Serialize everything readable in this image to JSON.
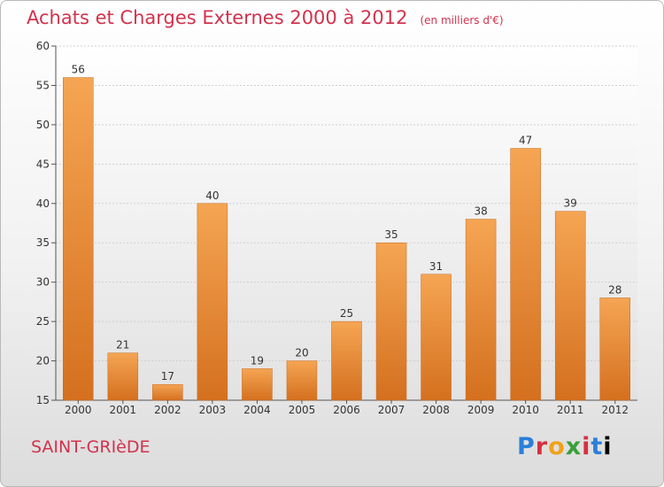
{
  "title": "Achats et Charges Externes 2000 à 2012",
  "subtitle": "(en milliers d'€)",
  "town": "SAINT-GRIèDE",
  "logo": [
    "P",
    "r",
    "o",
    "x",
    "i",
    "t",
    "i"
  ],
  "colors": {
    "bar_top": "#f5a553",
    "bar_bottom": "#d4701f",
    "title": "#d2324d"
  },
  "chart_data": {
    "type": "bar",
    "title": "Achats et Charges Externes 2000 à 2012",
    "subtitle": "(en milliers d'€)",
    "categories": [
      "2000",
      "2001",
      "2002",
      "2003",
      "2004",
      "2005",
      "2006",
      "2007",
      "2008",
      "2009",
      "2010",
      "2011",
      "2012"
    ],
    "values": [
      56,
      21,
      17,
      40,
      19,
      20,
      25,
      35,
      31,
      38,
      47,
      39,
      28
    ],
    "ylim": [
      15,
      60
    ],
    "yticks": [
      15,
      20,
      25,
      30,
      35,
      40,
      45,
      50,
      55,
      60
    ],
    "grid": true,
    "legend": "none"
  }
}
